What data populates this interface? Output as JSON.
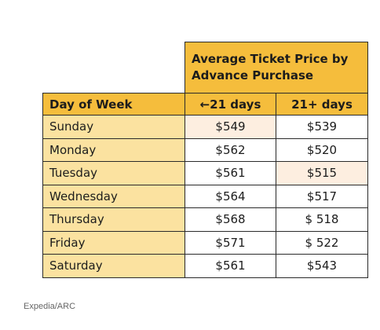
{
  "table": {
    "group_header": "Average Ticket Price by Advance Purchase",
    "column_headers": {
      "day": "Day of Week",
      "short": "←21 days",
      "long": "21+ days"
    },
    "rows": [
      {
        "day": "Sunday",
        "short": "$549",
        "long": "$539"
      },
      {
        "day": "Monday",
        "short": "$562",
        "long": "$520"
      },
      {
        "day": "Tuesday",
        "short": "$561",
        "long": "$515"
      },
      {
        "day": "Wednesday",
        "short": "$564",
        "long": "$517"
      },
      {
        "day": "Thursday",
        "short": "$568",
        "long": "$ 518"
      },
      {
        "day": "Friday",
        "short": "$571",
        "long": "$ 522"
      },
      {
        "day": "Saturday",
        "short": "$561",
        "long": "$543"
      }
    ],
    "highlighted_cells": [
      "Sunday short",
      "Tuesday long"
    ]
  },
  "source": "Expedia/ARC",
  "colors": {
    "header_gold": "#f5bd3c",
    "day_cell_yellow": "#fbe2a0",
    "highlight_peach": "#fdeee0",
    "border": "#2a2a2a"
  }
}
